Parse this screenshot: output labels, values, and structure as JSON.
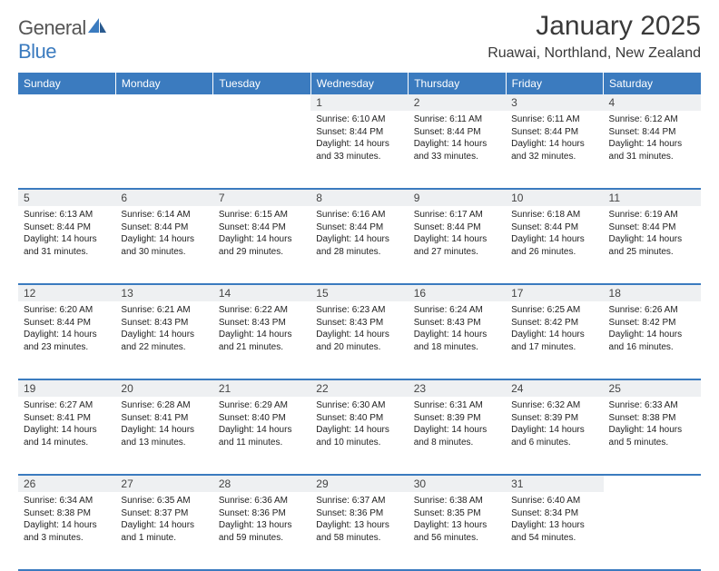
{
  "logo": {
    "general": "General",
    "blue": "Blue"
  },
  "title": "January 2025",
  "location": "Ruawai, Northland, New Zealand",
  "header_color": "#3b7bbf",
  "day_bg": "#eef0f2",
  "weekdays": [
    "Sunday",
    "Monday",
    "Tuesday",
    "Wednesday",
    "Thursday",
    "Friday",
    "Saturday"
  ],
  "weeks": [
    [
      {
        "n": "",
        "lines": []
      },
      {
        "n": "",
        "lines": []
      },
      {
        "n": "",
        "lines": []
      },
      {
        "n": "1",
        "lines": [
          "Sunrise: 6:10 AM",
          "Sunset: 8:44 PM",
          "Daylight: 14 hours",
          "and 33 minutes."
        ]
      },
      {
        "n": "2",
        "lines": [
          "Sunrise: 6:11 AM",
          "Sunset: 8:44 PM",
          "Daylight: 14 hours",
          "and 33 minutes."
        ]
      },
      {
        "n": "3",
        "lines": [
          "Sunrise: 6:11 AM",
          "Sunset: 8:44 PM",
          "Daylight: 14 hours",
          "and 32 minutes."
        ]
      },
      {
        "n": "4",
        "lines": [
          "Sunrise: 6:12 AM",
          "Sunset: 8:44 PM",
          "Daylight: 14 hours",
          "and 31 minutes."
        ]
      }
    ],
    [
      {
        "n": "5",
        "lines": [
          "Sunrise: 6:13 AM",
          "Sunset: 8:44 PM",
          "Daylight: 14 hours",
          "and 31 minutes."
        ]
      },
      {
        "n": "6",
        "lines": [
          "Sunrise: 6:14 AM",
          "Sunset: 8:44 PM",
          "Daylight: 14 hours",
          "and 30 minutes."
        ]
      },
      {
        "n": "7",
        "lines": [
          "Sunrise: 6:15 AM",
          "Sunset: 8:44 PM",
          "Daylight: 14 hours",
          "and 29 minutes."
        ]
      },
      {
        "n": "8",
        "lines": [
          "Sunrise: 6:16 AM",
          "Sunset: 8:44 PM",
          "Daylight: 14 hours",
          "and 28 minutes."
        ]
      },
      {
        "n": "9",
        "lines": [
          "Sunrise: 6:17 AM",
          "Sunset: 8:44 PM",
          "Daylight: 14 hours",
          "and 27 minutes."
        ]
      },
      {
        "n": "10",
        "lines": [
          "Sunrise: 6:18 AM",
          "Sunset: 8:44 PM",
          "Daylight: 14 hours",
          "and 26 minutes."
        ]
      },
      {
        "n": "11",
        "lines": [
          "Sunrise: 6:19 AM",
          "Sunset: 8:44 PM",
          "Daylight: 14 hours",
          "and 25 minutes."
        ]
      }
    ],
    [
      {
        "n": "12",
        "lines": [
          "Sunrise: 6:20 AM",
          "Sunset: 8:44 PM",
          "Daylight: 14 hours",
          "and 23 minutes."
        ]
      },
      {
        "n": "13",
        "lines": [
          "Sunrise: 6:21 AM",
          "Sunset: 8:43 PM",
          "Daylight: 14 hours",
          "and 22 minutes."
        ]
      },
      {
        "n": "14",
        "lines": [
          "Sunrise: 6:22 AM",
          "Sunset: 8:43 PM",
          "Daylight: 14 hours",
          "and 21 minutes."
        ]
      },
      {
        "n": "15",
        "lines": [
          "Sunrise: 6:23 AM",
          "Sunset: 8:43 PM",
          "Daylight: 14 hours",
          "and 20 minutes."
        ]
      },
      {
        "n": "16",
        "lines": [
          "Sunrise: 6:24 AM",
          "Sunset: 8:43 PM",
          "Daylight: 14 hours",
          "and 18 minutes."
        ]
      },
      {
        "n": "17",
        "lines": [
          "Sunrise: 6:25 AM",
          "Sunset: 8:42 PM",
          "Daylight: 14 hours",
          "and 17 minutes."
        ]
      },
      {
        "n": "18",
        "lines": [
          "Sunrise: 6:26 AM",
          "Sunset: 8:42 PM",
          "Daylight: 14 hours",
          "and 16 minutes."
        ]
      }
    ],
    [
      {
        "n": "19",
        "lines": [
          "Sunrise: 6:27 AM",
          "Sunset: 8:41 PM",
          "Daylight: 14 hours",
          "and 14 minutes."
        ]
      },
      {
        "n": "20",
        "lines": [
          "Sunrise: 6:28 AM",
          "Sunset: 8:41 PM",
          "Daylight: 14 hours",
          "and 13 minutes."
        ]
      },
      {
        "n": "21",
        "lines": [
          "Sunrise: 6:29 AM",
          "Sunset: 8:40 PM",
          "Daylight: 14 hours",
          "and 11 minutes."
        ]
      },
      {
        "n": "22",
        "lines": [
          "Sunrise: 6:30 AM",
          "Sunset: 8:40 PM",
          "Daylight: 14 hours",
          "and 10 minutes."
        ]
      },
      {
        "n": "23",
        "lines": [
          "Sunrise: 6:31 AM",
          "Sunset: 8:39 PM",
          "Daylight: 14 hours",
          "and 8 minutes."
        ]
      },
      {
        "n": "24",
        "lines": [
          "Sunrise: 6:32 AM",
          "Sunset: 8:39 PM",
          "Daylight: 14 hours",
          "and 6 minutes."
        ]
      },
      {
        "n": "25",
        "lines": [
          "Sunrise: 6:33 AM",
          "Sunset: 8:38 PM",
          "Daylight: 14 hours",
          "and 5 minutes."
        ]
      }
    ],
    [
      {
        "n": "26",
        "lines": [
          "Sunrise: 6:34 AM",
          "Sunset: 8:38 PM",
          "Daylight: 14 hours",
          "and 3 minutes."
        ]
      },
      {
        "n": "27",
        "lines": [
          "Sunrise: 6:35 AM",
          "Sunset: 8:37 PM",
          "Daylight: 14 hours",
          "and 1 minute."
        ]
      },
      {
        "n": "28",
        "lines": [
          "Sunrise: 6:36 AM",
          "Sunset: 8:36 PM",
          "Daylight: 13 hours",
          "and 59 minutes."
        ]
      },
      {
        "n": "29",
        "lines": [
          "Sunrise: 6:37 AM",
          "Sunset: 8:36 PM",
          "Daylight: 13 hours",
          "and 58 minutes."
        ]
      },
      {
        "n": "30",
        "lines": [
          "Sunrise: 6:38 AM",
          "Sunset: 8:35 PM",
          "Daylight: 13 hours",
          "and 56 minutes."
        ]
      },
      {
        "n": "31",
        "lines": [
          "Sunrise: 6:40 AM",
          "Sunset: 8:34 PM",
          "Daylight: 13 hours",
          "and 54 minutes."
        ]
      },
      {
        "n": "",
        "lines": []
      }
    ]
  ]
}
